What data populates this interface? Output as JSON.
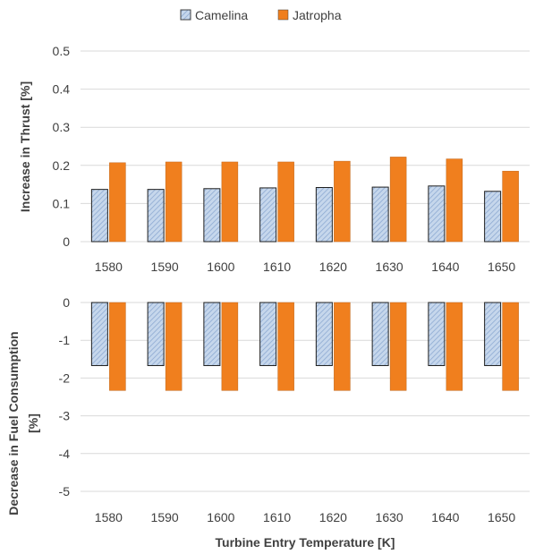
{
  "chart_data": [
    {
      "type": "bar",
      "categories": [
        "1580",
        "1590",
        "1600",
        "1610",
        "1620",
        "1630",
        "1640",
        "1650"
      ],
      "series": [
        {
          "name": "Camelina",
          "values": [
            0.137,
            0.137,
            0.139,
            0.141,
            0.142,
            0.143,
            0.146,
            0.132
          ]
        },
        {
          "name": "Jatropha",
          "values": [
            0.207,
            0.209,
            0.209,
            0.209,
            0.211,
            0.222,
            0.217,
            0.185
          ]
        }
      ],
      "ylabel": "Increase in Thrust [%]",
      "xlabel": "",
      "ylim": [
        0,
        0.5
      ],
      "yticks": [
        "0",
        "0.1",
        "0.2",
        "0.3",
        "0.4",
        "0.5"
      ],
      "grid": true,
      "legend": "top"
    },
    {
      "type": "bar",
      "categories": [
        "1580",
        "1590",
        "1600",
        "1610",
        "1620",
        "1630",
        "1640",
        "1650"
      ],
      "series": [
        {
          "name": "Camelina",
          "values": [
            -1.67,
            -1.67,
            -1.67,
            -1.67,
            -1.67,
            -1.67,
            -1.67,
            -1.67
          ]
        },
        {
          "name": "Jatropha",
          "values": [
            -2.33,
            -2.33,
            -2.33,
            -2.33,
            -2.33,
            -2.33,
            -2.33,
            -2.33
          ]
        }
      ],
      "ylabel": "Decrease in Fuel Consumption [%]",
      "xlabel": "Turbine Entry Temperature [K]",
      "ylim": [
        -5,
        0
      ],
      "yticks": [
        "0",
        "-1",
        "-2",
        "-3",
        "-4",
        "-5"
      ],
      "grid": true
    }
  ],
  "legend": [
    {
      "label": "Camelina",
      "fill": "#b8cce4",
      "pattern": "hatched"
    },
    {
      "label": "Jatropha",
      "fill": "#f79646",
      "pattern": "solid"
    }
  ],
  "colors": {
    "camelina": "#b8cce4",
    "camelina_hatch": "#8eaad2",
    "jatropha": "#f07f1e",
    "bar_outline": "#1f1f1f",
    "grid": "#d9d9d9",
    "text": "#404040"
  }
}
